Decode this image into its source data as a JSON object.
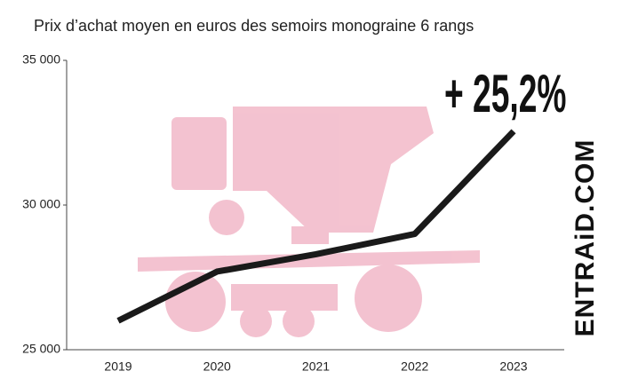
{
  "chart_data": {
    "type": "line",
    "title": "Prix d’achat moyen en euros des semoirs monograine 6 rangs",
    "categories": [
      "2019",
      "2020",
      "2021",
      "2022",
      "2023"
    ],
    "values": [
      26000,
      27700,
      28300,
      29000,
      32550
    ],
    "color": "#1a1a1a",
    "ylim": [
      25000,
      35000
    ],
    "yticks": [
      {
        "value": 25000,
        "label": "25 000"
      },
      {
        "value": 30000,
        "label": "30 000"
      },
      {
        "value": 35000,
        "label": "35 000"
      }
    ],
    "annotation": "+ 25,2%",
    "brand": "ENTRAiD.COM"
  }
}
